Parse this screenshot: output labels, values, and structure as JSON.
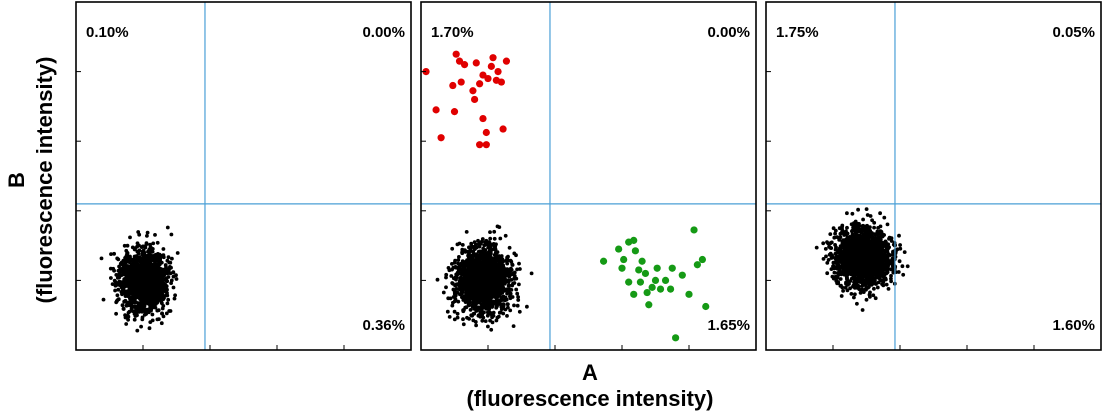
{
  "chart_data": {
    "type": "scatter",
    "xlabel": [
      "A",
      "(fluorescence intensity)"
    ],
    "ylabel": [
      "B",
      "(fluorescence intensity)"
    ],
    "xlim": [
      0,
      10
    ],
    "ylim": [
      0,
      10
    ],
    "gate": {
      "x": 3.85,
      "y": 4.2
    },
    "colors": {
      "population": "#000000",
      "b_positive": "#e00000",
      "a_positive": "#159a15",
      "gate_line": "#4a9fd6"
    },
    "panels": [
      {
        "quadrants": {
          "upper_left": "0.10%",
          "upper_right": "0.00%",
          "lower_left": "",
          "lower_right": "0.36%"
        },
        "main_population": {
          "center": [
            2.0,
            2.0
          ],
          "spread": [
            0.65,
            0.8
          ],
          "count": 1500,
          "seed": 11
        },
        "b_positive_points": [],
        "a_positive_points": []
      },
      {
        "quadrants": {
          "upper_left": "1.70%",
          "upper_right": "0.00%",
          "lower_left": "",
          "lower_right": "1.65%"
        },
        "main_population": {
          "center": [
            1.85,
            2.0
          ],
          "spread": [
            0.7,
            0.85
          ],
          "count": 1800,
          "seed": 23
        },
        "b_positive_points": [
          [
            0.15,
            8.0
          ],
          [
            1.05,
            8.5
          ],
          [
            1.15,
            8.3
          ],
          [
            1.3,
            8.2
          ],
          [
            1.65,
            8.25
          ],
          [
            2.1,
            8.15
          ],
          [
            2.55,
            8.3
          ],
          [
            2.3,
            8.0
          ],
          [
            0.95,
            7.6
          ],
          [
            1.2,
            7.7
          ],
          [
            1.75,
            7.65
          ],
          [
            2.0,
            7.8
          ],
          [
            2.25,
            7.75
          ],
          [
            2.4,
            7.7
          ],
          [
            1.85,
            7.9
          ],
          [
            1.55,
            7.45
          ],
          [
            0.45,
            6.9
          ],
          [
            1.0,
            6.85
          ],
          [
            1.85,
            6.65
          ],
          [
            1.95,
            6.25
          ],
          [
            2.45,
            6.35
          ],
          [
            0.6,
            6.1
          ],
          [
            1.75,
            5.9
          ],
          [
            1.95,
            5.9
          ],
          [
            1.6,
            7.2
          ],
          [
            2.15,
            8.4
          ]
        ],
        "a_positive_points": [
          [
            5.45,
            2.55
          ],
          [
            6.2,
            3.1
          ],
          [
            6.35,
            3.15
          ],
          [
            5.9,
            2.9
          ],
          [
            6.4,
            2.85
          ],
          [
            6.05,
            2.6
          ],
          [
            6.6,
            2.55
          ],
          [
            6.0,
            2.35
          ],
          [
            6.5,
            2.3
          ],
          [
            6.7,
            2.2
          ],
          [
            7.05,
            2.35
          ],
          [
            7.5,
            2.35
          ],
          [
            7.8,
            2.15
          ],
          [
            8.25,
            2.45
          ],
          [
            8.4,
            2.6
          ],
          [
            6.2,
            1.95
          ],
          [
            6.55,
            1.95
          ],
          [
            6.9,
            1.8
          ],
          [
            7.0,
            2.0
          ],
          [
            7.3,
            2.0
          ],
          [
            7.45,
            1.75
          ],
          [
            6.35,
            1.6
          ],
          [
            6.75,
            1.65
          ],
          [
            7.15,
            1.75
          ],
          [
            8.0,
            1.6
          ],
          [
            6.8,
            1.3
          ],
          [
            8.5,
            1.25
          ],
          [
            8.15,
            3.45
          ],
          [
            7.6,
            0.35
          ]
        ]
      },
      {
        "quadrants": {
          "upper_left": "1.75%",
          "upper_right": "0.05%",
          "lower_left": "",
          "lower_right": "1.60%"
        },
        "main_population": {
          "center": [
            2.9,
            2.65
          ],
          "spread": [
            0.75,
            0.75
          ],
          "count": 1800,
          "seed": 37
        },
        "b_positive_points": [],
        "a_positive_points": []
      }
    ]
  }
}
